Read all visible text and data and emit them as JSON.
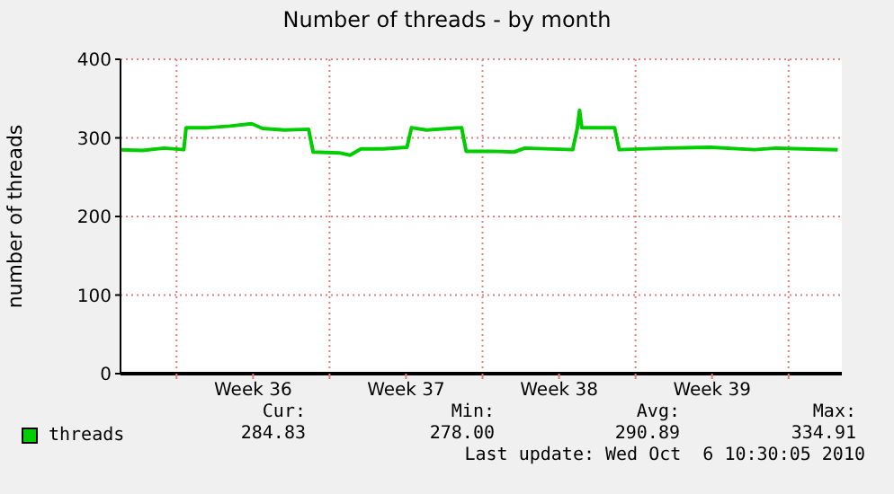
{
  "chart_data": {
    "type": "line",
    "title": "Number of threads - by month",
    "ylabel": "number of threads",
    "x": [
      "2010-09-03T10:30",
      "2010-09-04T10:30",
      "2010-09-05T10:30",
      "2010-09-06T08:00",
      "2010-09-06T10:30",
      "2010-09-07T10:30",
      "2010-09-08T10:30",
      "2010-09-09T10:30",
      "2010-09-09T22:30",
      "2010-09-10T22:30",
      "2010-09-12T01:00",
      "2010-09-12T06:00",
      "2010-09-13T10:30",
      "2010-09-13T22:30",
      "2010-09-14T10:30",
      "2010-09-15T10:30",
      "2010-09-16T13:00",
      "2010-09-16T18:00",
      "2010-09-17T10:30",
      "2010-09-19T01:00",
      "2010-09-19T06:00",
      "2010-09-20T10:30",
      "2010-09-21T10:30",
      "2010-09-21T22:30",
      "2010-09-24T03:00",
      "2010-09-24T08:00",
      "2010-09-24T10:30",
      "2010-09-24T13:00",
      "2010-09-26T01:00",
      "2010-09-26T06:00",
      "2010-09-28T10:30",
      "2010-09-30T10:30",
      "2010-10-02T10:30",
      "2010-10-03T10:30",
      "2010-10-06T06:00"
    ],
    "series": [
      {
        "name": "threads",
        "color": "#00cc00",
        "values": [
          285,
          284,
          287,
          285,
          313,
          313,
          315,
          318,
          312,
          310,
          311,
          282,
          281,
          278,
          286,
          286,
          288,
          313,
          310,
          313,
          283,
          283,
          282,
          287,
          285,
          312,
          335,
          313,
          313,
          285,
          287,
          288,
          285,
          287,
          285
        ]
      }
    ],
    "xlim": [
      "2010-09-03T10:30",
      "2010-10-06T10:30"
    ],
    "xticks": [
      {
        "value": "2010-09-06",
        "label": null
      },
      {
        "value": "2010-09-09T12:00",
        "label": "Week 36"
      },
      {
        "value": "2010-09-13",
        "label": null
      },
      {
        "value": "2010-09-16T12:00",
        "label": "Week 37"
      },
      {
        "value": "2010-09-20",
        "label": null
      },
      {
        "value": "2010-09-23T12:00",
        "label": "Week 38"
      },
      {
        "value": "2010-09-27",
        "label": null
      },
      {
        "value": "2010-09-30T12:00",
        "label": "Week 39"
      },
      {
        "value": "2010-10-04",
        "label": null
      }
    ],
    "ylim": [
      0,
      400
    ],
    "yticks": [
      0,
      100,
      200,
      300,
      400
    ],
    "grid": true,
    "legend": "bottom",
    "marker": "none",
    "line_style": "solid",
    "annotations": [
      "Cur:",
      "284.83",
      "Min:",
      "278.00",
      "Avg:",
      "290.89",
      "Max:",
      "334.91",
      "Last update: Wed Oct  6 10:30:05 2010"
    ]
  }
}
